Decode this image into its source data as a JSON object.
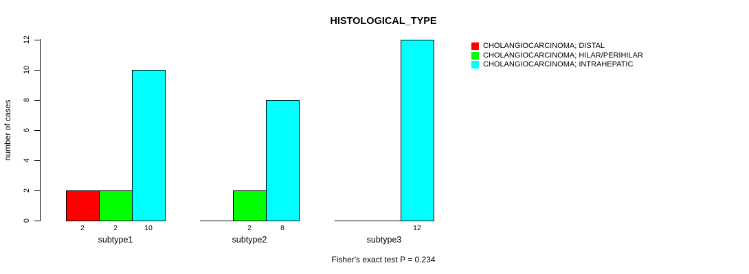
{
  "figure": {
    "background": "#ffffff",
    "text_color": "#000000"
  },
  "chart_data": {
    "type": "bar",
    "title": "HISTOLOGICAL_TYPE",
    "xlabel": "",
    "ylabel": "number of cases",
    "ylim": [
      0,
      12
    ],
    "yticks": [
      0,
      2,
      4,
      6,
      8,
      10,
      12
    ],
    "grid": false,
    "legend_position": "top-right",
    "categories": [
      "subtype1",
      "subtype2",
      "subtype3"
    ],
    "series": [
      {
        "name": "CHOLANGIOCARCINOMA; DISTAL",
        "color": "#ff0000",
        "values": [
          2,
          0,
          0
        ]
      },
      {
        "name": "CHOLANGIOCARCINOMA; HILAR/PERIHILAR",
        "color": "#00ff00",
        "values": [
          2,
          2,
          0
        ]
      },
      {
        "name": "CHOLANGIOCARCINOMA; INTRAHEPATIC",
        "color": "#00ffff",
        "values": [
          10,
          8,
          12
        ]
      }
    ],
    "visible_bar_value_labels": {
      "subtype1": [
        "2",
        "2",
        "10"
      ],
      "subtype2": [
        "2",
        "8"
      ],
      "subtype3": [
        "12"
      ]
    },
    "annotation": "Fisher's exact test P = 0.234"
  },
  "legend": {
    "items": [
      {
        "label": "CHOLANGIOCARCINOMA; DISTAL",
        "color": "#ff0000"
      },
      {
        "label": "CHOLANGIOCARCINOMA; HILAR/PERIHILAR",
        "color": "#00ff00"
      },
      {
        "label": "CHOLANGIOCARCINOMA; INTRAHEPATIC",
        "color": "#00ffff"
      }
    ]
  }
}
